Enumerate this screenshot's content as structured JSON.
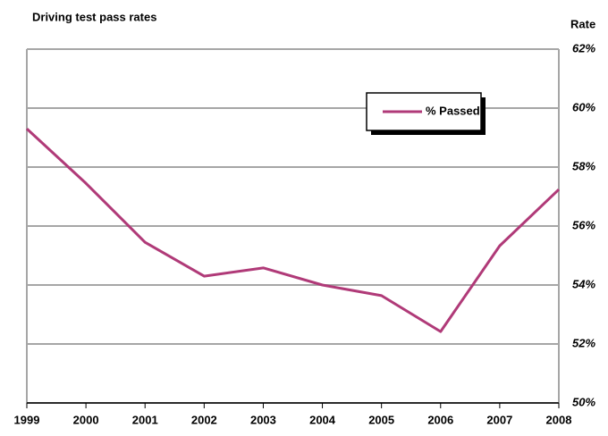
{
  "chart_data": {
    "type": "line",
    "title": "Driving test pass rates",
    "y_axis_label": "Rate",
    "categories": [
      "1999",
      "2000",
      "2001",
      "2002",
      "2003",
      "2004",
      "2005",
      "2006",
      "2007",
      "2008"
    ],
    "series": [
      {
        "name": "% Passed",
        "color": "#b03a78",
        "values": [
          59.3,
          57.45,
          55.45,
          54.3,
          54.58,
          54.0,
          53.64,
          52.42,
          55.33,
          57.24
        ]
      }
    ],
    "ylim": [
      50,
      62
    ],
    "yticks": [
      {
        "value": 50,
        "label": "50%"
      },
      {
        "value": 52,
        "label": "52%"
      },
      {
        "value": 54,
        "label": "54%"
      },
      {
        "value": 56,
        "label": "56%"
      },
      {
        "value": 58,
        "label": "58%"
      },
      {
        "value": 60,
        "label": "60%"
      },
      {
        "value": 62,
        "label": "62%"
      }
    ],
    "grid": true,
    "legend": "upper right"
  }
}
